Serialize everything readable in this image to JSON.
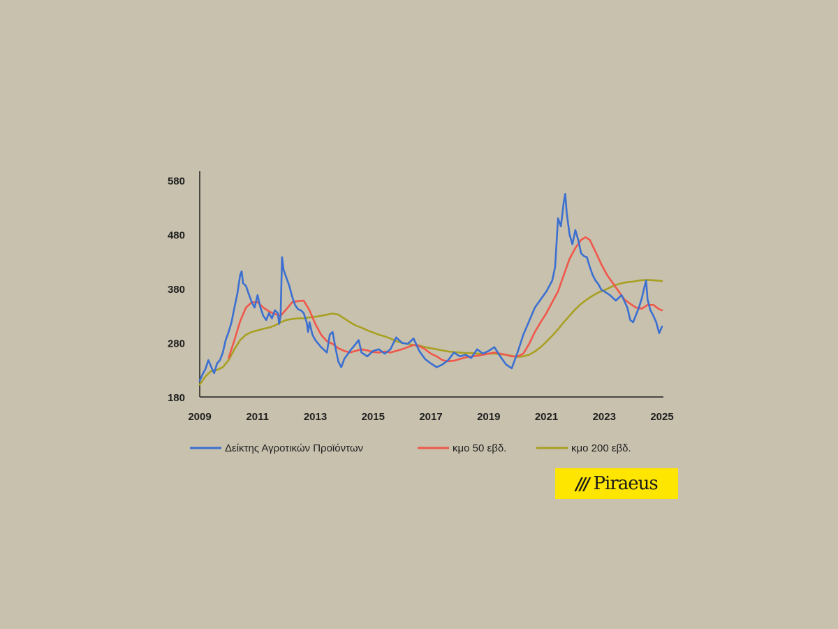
{
  "chart_data": {
    "type": "line",
    "x_range": [
      2009,
      2025
    ],
    "ylim": [
      180,
      580
    ],
    "y_ticks": [
      180,
      280,
      380,
      480,
      580
    ],
    "x_ticks": [
      2009,
      2011,
      2013,
      2015,
      2017,
      2019,
      2021,
      2023,
      2025
    ],
    "grid": false,
    "legend_position": "bottom",
    "series": [
      {
        "name": "Δείκτης Αγροτικών Προϊόντων",
        "color": "#3b6fd1",
        "points": [
          [
            2009.0,
            210
          ],
          [
            2009.1,
            222
          ],
          [
            2009.2,
            232
          ],
          [
            2009.3,
            248
          ],
          [
            2009.4,
            235
          ],
          [
            2009.5,
            224
          ],
          [
            2009.6,
            242
          ],
          [
            2009.7,
            248
          ],
          [
            2009.8,
            262
          ],
          [
            2009.9,
            285
          ],
          [
            2010.0,
            300
          ],
          [
            2010.1,
            318
          ],
          [
            2010.2,
            345
          ],
          [
            2010.3,
            370
          ],
          [
            2010.4,
            405
          ],
          [
            2010.45,
            412
          ],
          [
            2010.5,
            390
          ],
          [
            2010.6,
            385
          ],
          [
            2010.7,
            370
          ],
          [
            2010.8,
            355
          ],
          [
            2010.9,
            345
          ],
          [
            2011.0,
            368
          ],
          [
            2011.1,
            345
          ],
          [
            2011.2,
            330
          ],
          [
            2011.3,
            322
          ],
          [
            2011.4,
            335
          ],
          [
            2011.5,
            325
          ],
          [
            2011.6,
            340
          ],
          [
            2011.7,
            335
          ],
          [
            2011.75,
            315
          ],
          [
            2011.8,
            330
          ],
          [
            2011.85,
            438
          ],
          [
            2011.9,
            415
          ],
          [
            2012.0,
            400
          ],
          [
            2012.1,
            385
          ],
          [
            2012.2,
            365
          ],
          [
            2012.3,
            350
          ],
          [
            2012.4,
            342
          ],
          [
            2012.5,
            340
          ],
          [
            2012.6,
            335
          ],
          [
            2012.7,
            318
          ],
          [
            2012.75,
            300
          ],
          [
            2012.8,
            318
          ],
          [
            2012.9,
            295
          ],
          [
            2013.0,
            285
          ],
          [
            2013.2,
            272
          ],
          [
            2013.4,
            262
          ],
          [
            2013.5,
            295
          ],
          [
            2013.6,
            300
          ],
          [
            2013.7,
            270
          ],
          [
            2013.8,
            245
          ],
          [
            2013.9,
            235
          ],
          [
            2014.0,
            250
          ],
          [
            2014.2,
            265
          ],
          [
            2014.4,
            278
          ],
          [
            2014.5,
            285
          ],
          [
            2014.6,
            262
          ],
          [
            2014.8,
            255
          ],
          [
            2015.0,
            265
          ],
          [
            2015.2,
            268
          ],
          [
            2015.4,
            260
          ],
          [
            2015.6,
            268
          ],
          [
            2015.8,
            290
          ],
          [
            2016.0,
            280
          ],
          [
            2016.2,
            278
          ],
          [
            2016.4,
            288
          ],
          [
            2016.6,
            265
          ],
          [
            2016.8,
            250
          ],
          [
            2017.0,
            242
          ],
          [
            2017.2,
            235
          ],
          [
            2017.4,
            240
          ],
          [
            2017.6,
            248
          ],
          [
            2017.8,
            262
          ],
          [
            2018.0,
            255
          ],
          [
            2018.2,
            258
          ],
          [
            2018.4,
            252
          ],
          [
            2018.6,
            268
          ],
          [
            2018.8,
            260
          ],
          [
            2019.0,
            265
          ],
          [
            2019.2,
            272
          ],
          [
            2019.4,
            255
          ],
          [
            2019.6,
            240
          ],
          [
            2019.8,
            233
          ],
          [
            2020.0,
            262
          ],
          [
            2020.2,
            295
          ],
          [
            2020.4,
            320
          ],
          [
            2020.6,
            345
          ],
          [
            2020.8,
            360
          ],
          [
            2021.0,
            375
          ],
          [
            2021.2,
            395
          ],
          [
            2021.3,
            420
          ],
          [
            2021.4,
            510
          ],
          [
            2021.5,
            495
          ],
          [
            2021.6,
            540
          ],
          [
            2021.65,
            555
          ],
          [
            2021.7,
            520
          ],
          [
            2021.8,
            480
          ],
          [
            2021.9,
            462
          ],
          [
            2022.0,
            488
          ],
          [
            2022.1,
            470
          ],
          [
            2022.2,
            445
          ],
          [
            2022.3,
            440
          ],
          [
            2022.4,
            438
          ],
          [
            2022.5,
            420
          ],
          [
            2022.6,
            405
          ],
          [
            2022.7,
            395
          ],
          [
            2022.8,
            388
          ],
          [
            2022.9,
            378
          ],
          [
            2023.0,
            375
          ],
          [
            2023.2,
            368
          ],
          [
            2023.4,
            358
          ],
          [
            2023.6,
            368
          ],
          [
            2023.8,
            345
          ],
          [
            2023.9,
            322
          ],
          [
            2024.0,
            318
          ],
          [
            2024.2,
            345
          ],
          [
            2024.3,
            362
          ],
          [
            2024.4,
            385
          ],
          [
            2024.45,
            395
          ],
          [
            2024.5,
            360
          ],
          [
            2024.6,
            340
          ],
          [
            2024.7,
            330
          ],
          [
            2024.8,
            318
          ],
          [
            2024.9,
            298
          ],
          [
            2025.0,
            310
          ]
        ]
      },
      {
        "name": "κμο 50 εβδ.",
        "color": "#f0574b",
        "points": [
          [
            2010.0,
            252
          ],
          [
            2010.2,
            285
          ],
          [
            2010.4,
            320
          ],
          [
            2010.6,
            345
          ],
          [
            2010.8,
            355
          ],
          [
            2011.0,
            355
          ],
          [
            2011.2,
            345
          ],
          [
            2011.4,
            338
          ],
          [
            2011.6,
            333
          ],
          [
            2011.8,
            330
          ],
          [
            2012.0,
            342
          ],
          [
            2012.2,
            355
          ],
          [
            2012.4,
            357
          ],
          [
            2012.6,
            358
          ],
          [
            2012.8,
            340
          ],
          [
            2013.0,
            315
          ],
          [
            2013.2,
            295
          ],
          [
            2013.4,
            283
          ],
          [
            2013.6,
            278
          ],
          [
            2013.8,
            270
          ],
          [
            2014.0,
            265
          ],
          [
            2014.2,
            262
          ],
          [
            2014.4,
            265
          ],
          [
            2014.6,
            268
          ],
          [
            2014.8,
            266
          ],
          [
            2015.0,
            263
          ],
          [
            2015.2,
            262
          ],
          [
            2015.4,
            264
          ],
          [
            2015.6,
            262
          ],
          [
            2015.8,
            265
          ],
          [
            2016.0,
            268
          ],
          [
            2016.2,
            272
          ],
          [
            2016.4,
            276
          ],
          [
            2016.6,
            274
          ],
          [
            2016.8,
            268
          ],
          [
            2017.0,
            260
          ],
          [
            2017.2,
            255
          ],
          [
            2017.4,
            248
          ],
          [
            2017.6,
            246
          ],
          [
            2017.8,
            247
          ],
          [
            2018.0,
            250
          ],
          [
            2018.2,
            253
          ],
          [
            2018.4,
            255
          ],
          [
            2018.6,
            256
          ],
          [
            2018.8,
            258
          ],
          [
            2019.0,
            260
          ],
          [
            2019.2,
            262
          ],
          [
            2019.4,
            260
          ],
          [
            2019.6,
            258
          ],
          [
            2019.8,
            255
          ],
          [
            2020.0,
            255
          ],
          [
            2020.2,
            260
          ],
          [
            2020.4,
            278
          ],
          [
            2020.6,
            300
          ],
          [
            2020.8,
            318
          ],
          [
            2021.0,
            335
          ],
          [
            2021.2,
            355
          ],
          [
            2021.4,
            375
          ],
          [
            2021.6,
            405
          ],
          [
            2021.8,
            435
          ],
          [
            2022.0,
            455
          ],
          [
            2022.2,
            470
          ],
          [
            2022.35,
            475
          ],
          [
            2022.5,
            470
          ],
          [
            2022.7,
            448
          ],
          [
            2022.9,
            425
          ],
          [
            2023.1,
            405
          ],
          [
            2023.3,
            390
          ],
          [
            2023.5,
            375
          ],
          [
            2023.7,
            360
          ],
          [
            2023.9,
            352
          ],
          [
            2024.1,
            345
          ],
          [
            2024.3,
            343
          ],
          [
            2024.5,
            350
          ],
          [
            2024.7,
            350
          ],
          [
            2024.9,
            342
          ],
          [
            2025.0,
            340
          ]
        ]
      },
      {
        "name": "κμο 200 εβδ.",
        "color": "#a8a022",
        "points": [
          [
            2009.0,
            203
          ],
          [
            2009.2,
            218
          ],
          [
            2009.4,
            228
          ],
          [
            2009.6,
            230
          ],
          [
            2009.8,
            235
          ],
          [
            2010.0,
            248
          ],
          [
            2010.2,
            268
          ],
          [
            2010.4,
            285
          ],
          [
            2010.6,
            295
          ],
          [
            2010.8,
            300
          ],
          [
            2011.0,
            303
          ],
          [
            2011.2,
            306
          ],
          [
            2011.4,
            308
          ],
          [
            2011.6,
            312
          ],
          [
            2011.8,
            318
          ],
          [
            2012.0,
            322
          ],
          [
            2012.2,
            324
          ],
          [
            2012.4,
            325
          ],
          [
            2012.6,
            325
          ],
          [
            2012.8,
            327
          ],
          [
            2013.0,
            328
          ],
          [
            2013.2,
            330
          ],
          [
            2013.4,
            332
          ],
          [
            2013.6,
            334
          ],
          [
            2013.8,
            332
          ],
          [
            2014.0,
            325
          ],
          [
            2014.2,
            318
          ],
          [
            2014.4,
            312
          ],
          [
            2014.6,
            308
          ],
          [
            2014.8,
            303
          ],
          [
            2015.0,
            299
          ],
          [
            2015.2,
            295
          ],
          [
            2015.4,
            292
          ],
          [
            2015.6,
            288
          ],
          [
            2015.8,
            283
          ],
          [
            2016.0,
            280
          ],
          [
            2016.2,
            278
          ],
          [
            2016.4,
            276
          ],
          [
            2016.6,
            275
          ],
          [
            2016.8,
            272
          ],
          [
            2017.0,
            270
          ],
          [
            2017.2,
            268
          ],
          [
            2017.4,
            266
          ],
          [
            2017.6,
            264
          ],
          [
            2017.8,
            263
          ],
          [
            2018.0,
            262
          ],
          [
            2018.2,
            261
          ],
          [
            2018.4,
            261
          ],
          [
            2018.6,
            260
          ],
          [
            2018.8,
            260
          ],
          [
            2019.0,
            260
          ],
          [
            2019.2,
            260
          ],
          [
            2019.4,
            259
          ],
          [
            2019.6,
            258
          ],
          [
            2019.8,
            256
          ],
          [
            2020.0,
            254
          ],
          [
            2020.2,
            255
          ],
          [
            2020.4,
            258
          ],
          [
            2020.6,
            264
          ],
          [
            2020.8,
            272
          ],
          [
            2021.0,
            282
          ],
          [
            2021.2,
            293
          ],
          [
            2021.4,
            305
          ],
          [
            2021.6,
            318
          ],
          [
            2021.8,
            330
          ],
          [
            2022.0,
            342
          ],
          [
            2022.2,
            352
          ],
          [
            2022.4,
            360
          ],
          [
            2022.6,
            367
          ],
          [
            2022.8,
            373
          ],
          [
            2023.0,
            377
          ],
          [
            2023.2,
            382
          ],
          [
            2023.4,
            387
          ],
          [
            2023.6,
            390
          ],
          [
            2023.8,
            392
          ],
          [
            2024.0,
            393
          ],
          [
            2024.2,
            395
          ],
          [
            2024.4,
            396
          ],
          [
            2024.6,
            396
          ],
          [
            2024.8,
            395
          ],
          [
            2025.0,
            394
          ]
        ]
      }
    ]
  },
  "logo": {
    "mark": "///",
    "text": "Piraeus",
    "background": "#ffe600"
  }
}
